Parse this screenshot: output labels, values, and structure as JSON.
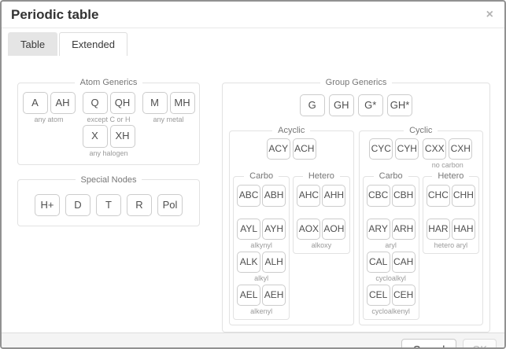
{
  "window": {
    "title": "Periodic table",
    "close_icon": "×"
  },
  "tabs": {
    "table": "Table",
    "extended": "Extended",
    "active": "Extended"
  },
  "atom_generics": {
    "legend": "Atom Generics",
    "groups": [
      {
        "buttons": [
          "A",
          "AH"
        ],
        "caption": "any atom"
      },
      {
        "buttons": [
          "Q",
          "QH"
        ],
        "caption": "except C or H"
      },
      {
        "buttons": [
          "M",
          "MH"
        ],
        "caption": "any metal"
      },
      {
        "buttons": [
          "X",
          "XH"
        ],
        "caption": "any halogen"
      }
    ]
  },
  "special_nodes": {
    "legend": "Special Nodes",
    "buttons": [
      "H+",
      "D",
      "T",
      "R",
      "Pol"
    ]
  },
  "group_generics": {
    "legend": "Group Generics",
    "buttons": [
      "G",
      "GH",
      "G*",
      "GH*"
    ],
    "acyclic": {
      "legend": "Acyclic",
      "top": {
        "buttons": [
          "ACY",
          "ACH"
        ],
        "caption": ""
      },
      "carbo": {
        "legend": "Carbo",
        "rows": [
          {
            "buttons": [
              "ABC",
              "ABH"
            ],
            "caption": ""
          },
          {
            "buttons": [
              "AYL",
              "AYH"
            ],
            "caption": "alkynyl"
          },
          {
            "buttons": [
              "ALK",
              "ALH"
            ],
            "caption": "alkyl"
          },
          {
            "buttons": [
              "AEL",
              "AEH"
            ],
            "caption": "alkenyl"
          }
        ]
      },
      "hetero": {
        "legend": "Hetero",
        "rows": [
          {
            "buttons": [
              "AHC",
              "AHH"
            ],
            "caption": ""
          },
          {
            "buttons": [
              "AOX",
              "AOH"
            ],
            "caption": "alkoxy"
          }
        ]
      }
    },
    "cyclic": {
      "legend": "Cyclic",
      "top": [
        {
          "buttons": [
            "CYC",
            "CYH"
          ],
          "caption": ""
        },
        {
          "buttons": [
            "CXX",
            "CXH"
          ],
          "caption": "no carbon"
        }
      ],
      "carbo": {
        "legend": "Carbo",
        "rows": [
          {
            "buttons": [
              "CBC",
              "CBH"
            ],
            "caption": ""
          },
          {
            "buttons": [
              "ARY",
              "ARH"
            ],
            "caption": "aryl"
          },
          {
            "buttons": [
              "CAL",
              "CAH"
            ],
            "caption": "cycloalkyl"
          },
          {
            "buttons": [
              "CEL",
              "CEH"
            ],
            "caption": "cycloalkenyl"
          }
        ]
      },
      "hetero": {
        "legend": "Hetero",
        "rows": [
          {
            "buttons": [
              "CHC",
              "CHH"
            ],
            "caption": ""
          },
          {
            "buttons": [
              "HAR",
              "HAH"
            ],
            "caption": "hetero aryl"
          }
        ]
      }
    }
  },
  "footer": {
    "cancel": "Cancel",
    "ok": "OK",
    "ok_disabled": true
  },
  "colors": {
    "dialog_border": "#919191",
    "fieldset_border": "#e2e2e2",
    "button_border": "#cccccc",
    "footer_bg": "#f4f4f4",
    "inactive_tab_bg": "#e5e5e5",
    "disabled_text": "#b5b5b5"
  }
}
